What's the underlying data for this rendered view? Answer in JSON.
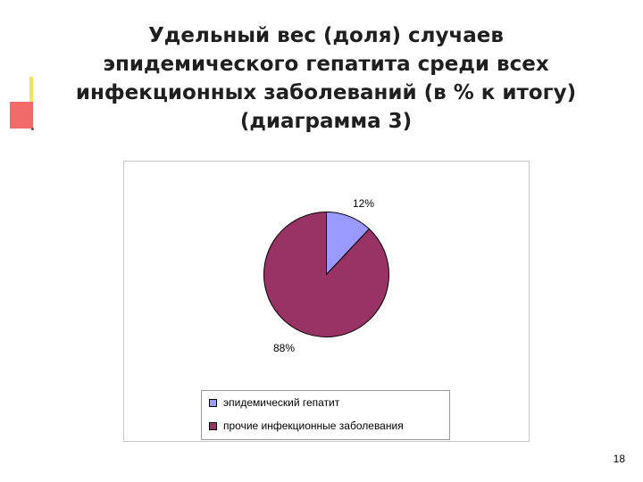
{
  "title_lines": [
    "Удельный вес (доля) случаев",
    "эпидемического гепатита среди всех",
    "инфекционных заболеваний (в % к итогу)",
    "(диаграмма 3)"
  ],
  "chart_data": {
    "type": "pie",
    "title": "",
    "categories": [
      "эпидемический гепатит",
      "прочие инфекционные заболевания"
    ],
    "values": [
      12,
      88
    ],
    "data_labels": [
      "12%",
      "88%"
    ],
    "colors": [
      "#9999ff",
      "#993366"
    ],
    "start_angle_deg": 0,
    "direction": "clockwise",
    "legend_position": "bottom"
  },
  "legend": {
    "items": [
      {
        "label": "эпидемический гепатит",
        "color": "#9999ff"
      },
      {
        "label": "прочие инфекционные заболевания",
        "color": "#993366"
      }
    ]
  },
  "page_number": "18"
}
